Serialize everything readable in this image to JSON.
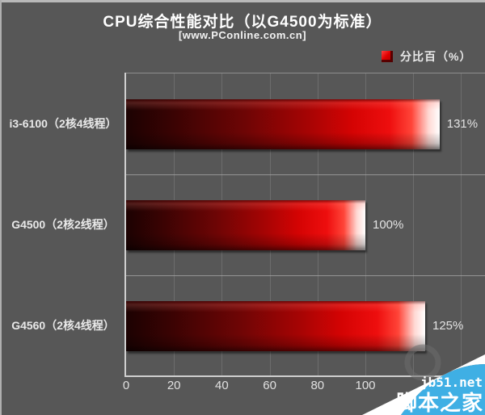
{
  "title": {
    "text": "CPU综合性能对比（以G4500为标准）",
    "subtitle": "[www.PConline.com.cn]"
  },
  "legend": {
    "label": "分比百（%）",
    "swatch_color": "#dd0000"
  },
  "chart_data": {
    "type": "bar",
    "orientation": "horizontal",
    "title": "CPU综合性能对比（以G4500为标准）",
    "subtitle": "[www.PConline.com.cn]",
    "legend_entries": [
      "分比百（%）"
    ],
    "categories": [
      "i3-6100（2核4线程）",
      "G4500（2核2线程）",
      "G4560（2核4线程）"
    ],
    "values": [
      131,
      100,
      125
    ],
    "value_labels": [
      "131%",
      "100%",
      "125%"
    ],
    "xlabel": "",
    "ylabel": "",
    "xlim": [
      0,
      150
    ],
    "xticks": [
      0,
      20,
      40,
      60,
      80,
      100
    ],
    "grid": true,
    "bar_color_gradient": [
      "#1c0202",
      "#d40303",
      "#ffffff"
    ],
    "background_color": "#575757"
  },
  "watermark": {
    "line1": "jb51.net",
    "line2": "脚本之家",
    "blue": "#3fafe4"
  }
}
